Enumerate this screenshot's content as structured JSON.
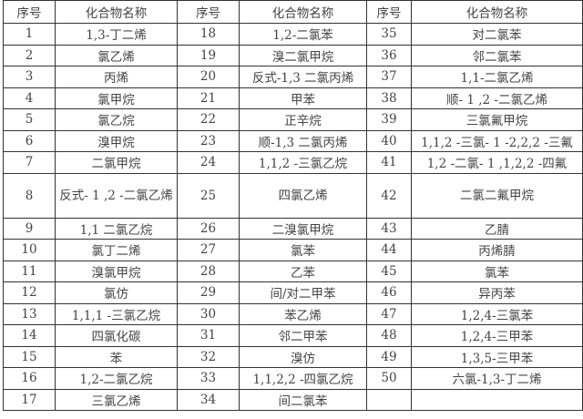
{
  "headers": [
    "序号",
    "化合物名称",
    "序号",
    "化合物名称",
    "序号",
    "化合物名称"
  ],
  "rows": [
    [
      [
        "1",
        "1,3-丁二烯"
      ],
      [
        "18",
        "1,2-二氯苯"
      ],
      [
        "35",
        "对二氯苯"
      ]
    ],
    [
      [
        "2",
        "氯乙烯"
      ],
      [
        "19",
        "溴二氯甲烷"
      ],
      [
        "36",
        "邻二氯苯"
      ]
    ],
    [
      [
        "3",
        "丙烯"
      ],
      [
        "20",
        "反式-1,3 二氯丙烯"
      ],
      [
        "37",
        "1,1-二氯乙烯"
      ]
    ],
    [
      [
        "4",
        "氯甲烷"
      ],
      [
        "21",
        "甲苯"
      ],
      [
        "38",
        "顺- 1 ,2 -二氯乙烯"
      ]
    ],
    [
      [
        "5",
        "氯乙烷"
      ],
      [
        "22",
        "正辛烷"
      ],
      [
        "39",
        "三氯氟甲烷"
      ]
    ],
    [
      [
        "6",
        "溴甲烷"
      ],
      [
        "23",
        "顺-1,3 二氯丙烯"
      ],
      [
        "40",
        "1,1,2 -三氯- 1 -2,2,2 -三氟"
      ]
    ],
    [
      [
        "7",
        "二氯甲烷"
      ],
      [
        "24",
        "1,1,2 -三氯乙烷"
      ],
      [
        "41",
        "1,2 -二氯- 1 ,1,2,2 -四氟"
      ]
    ],
    [
      [
        "8",
        "反式- 1 ,2 -二氯乙烯"
      ],
      [
        "25",
        "四氯乙烯"
      ],
      [
        "42",
        "二氯二氟甲烷"
      ]
    ],
    [
      [
        "9",
        "1,1 二氯乙烷"
      ],
      [
        "26",
        "二溴氯甲烷"
      ],
      [
        "43",
        "乙腈"
      ]
    ],
    [
      [
        "10",
        "氯丁二烯"
      ],
      [
        "27",
        "氯苯"
      ],
      [
        "44",
        "丙烯腈"
      ]
    ],
    [
      [
        "11",
        "溴氯甲烷"
      ],
      [
        "28",
        "乙苯"
      ],
      [
        "45",
        "氯苯"
      ]
    ],
    [
      [
        "12",
        "氯仿"
      ],
      [
        "29",
        "间/对二甲苯"
      ],
      [
        "46",
        "异丙苯"
      ]
    ],
    [
      [
        "13",
        "1,1,1 -三氯乙烷"
      ],
      [
        "30",
        "苯乙烯"
      ],
      [
        "47",
        "1,2,4-三氯苯"
      ]
    ],
    [
      [
        "14",
        "四氯化碳"
      ],
      [
        "31",
        "邻二甲苯"
      ],
      [
        "48",
        "1,2,4-三甲苯"
      ]
    ],
    [
      [
        "15",
        "苯"
      ],
      [
        "32",
        "溴仿"
      ],
      [
        "49",
        "1,3,5-三甲苯"
      ]
    ],
    [
      [
        "16",
        "1,2-二氯乙烷"
      ],
      [
        "33",
        "1,1,2,2 -四氯乙烷"
      ],
      [
        "50",
        "六氯-1,3-丁二烯"
      ]
    ],
    [
      [
        "17",
        "三氯乙烯"
      ],
      [
        "34",
        "间二氯苯"
      ],
      [
        "",
        ""
      ]
    ]
  ]
}
